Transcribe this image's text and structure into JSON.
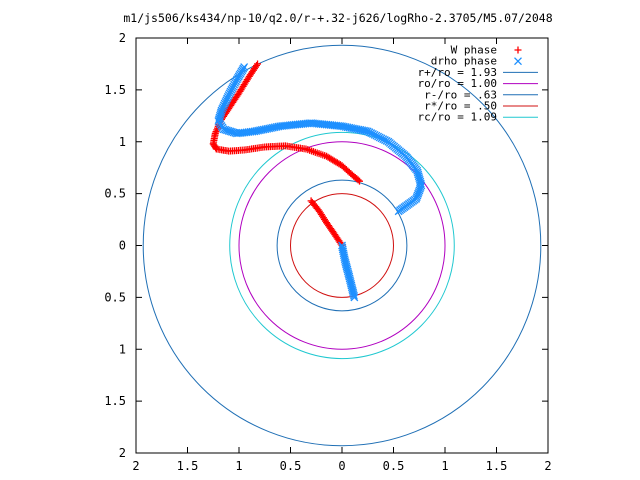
{
  "chart_data": {
    "type": "scatter",
    "title": "m1/js506/ks434/np-10/q2.0/r-+.32-j626/logRho-2.3705/M5.07/2048",
    "xlabel": "",
    "ylabel": "",
    "xlim": [
      -2,
      2
    ],
    "ylim": [
      -2,
      2
    ],
    "x_tick_values": [
      -2,
      -1.5,
      -1,
      -0.5,
      0,
      0.5,
      1,
      1.5,
      2
    ],
    "x_tick_labels": [
      "2",
      "1.5",
      "1",
      "0.5",
      "0",
      "0.5",
      "1",
      "1.5",
      "2"
    ],
    "y_tick_values": [
      2,
      1.5,
      1,
      0.5,
      0,
      -0.5,
      -1,
      -1.5,
      -2
    ],
    "y_tick_labels": [
      "2",
      "1.5",
      "1",
      "0.5",
      "0",
      "0.5",
      "1",
      "1.5",
      "2"
    ],
    "grid": false,
    "legend_position": "top-right",
    "series": [
      {
        "name": "W phase",
        "marker": "+",
        "color": "#ff0000",
        "segments": [
          [
            [
              -0.82,
              1.75
            ],
            [
              -0.9,
              1.63
            ],
            [
              -1.0,
              1.47
            ],
            [
              -1.1,
              1.32
            ],
            [
              -1.18,
              1.2
            ],
            [
              -1.23,
              1.08
            ],
            [
              -1.25,
              0.98
            ],
            [
              -1.22,
              0.93
            ],
            [
              -1.1,
              0.91
            ],
            [
              -0.95,
              0.92
            ],
            [
              -0.75,
              0.95
            ],
            [
              -0.55,
              0.96
            ],
            [
              -0.35,
              0.93
            ],
            [
              -0.15,
              0.86
            ],
            [
              0.0,
              0.77
            ],
            [
              0.1,
              0.68
            ],
            [
              0.17,
              0.62
            ]
          ],
          [
            [
              -0.3,
              0.43
            ],
            [
              -0.22,
              0.33
            ],
            [
              -0.15,
              0.22
            ],
            [
              -0.08,
              0.12
            ],
            [
              0.0,
              0.0
            ]
          ]
        ]
      },
      {
        "name": "drho phase",
        "marker": "x",
        "color": "#1e90ff",
        "segments": [
          [
            [
              -0.95,
              1.72
            ],
            [
              -1.02,
              1.6
            ],
            [
              -1.1,
              1.45
            ],
            [
              -1.17,
              1.3
            ],
            [
              -1.2,
              1.2
            ],
            [
              -1.15,
              1.12
            ],
            [
              -1.02,
              1.08
            ],
            [
              -0.85,
              1.1
            ],
            [
              -0.6,
              1.15
            ],
            [
              -0.3,
              1.18
            ],
            [
              0.0,
              1.15
            ],
            [
              0.25,
              1.1
            ],
            [
              0.45,
              1.0
            ],
            [
              0.62,
              0.86
            ],
            [
              0.73,
              0.72
            ],
            [
              0.77,
              0.58
            ],
            [
              0.72,
              0.45
            ],
            [
              0.62,
              0.38
            ],
            [
              0.55,
              0.33
            ]
          ],
          [
            [
              0.0,
              0.0
            ],
            [
              0.03,
              -0.15
            ],
            [
              0.07,
              -0.3
            ],
            [
              0.1,
              -0.42
            ],
            [
              0.12,
              -0.5
            ]
          ]
        ]
      }
    ],
    "circles": [
      {
        "name": "r+/ro = 1.93",
        "radius": 1.93,
        "color": "#1f6fb5"
      },
      {
        "name": "ro/ro = 1.00",
        "radius": 1.0,
        "color": "#b000c0"
      },
      {
        "name": "r-/ro = .63",
        "radius": 0.63,
        "color": "#1f6fb5"
      },
      {
        "name": "r*/ro = .50",
        "radius": 0.5,
        "color": "#d01010"
      },
      {
        "name": "rc/ro = 1.09",
        "radius": 1.09,
        "color": "#20c8d0"
      }
    ]
  }
}
